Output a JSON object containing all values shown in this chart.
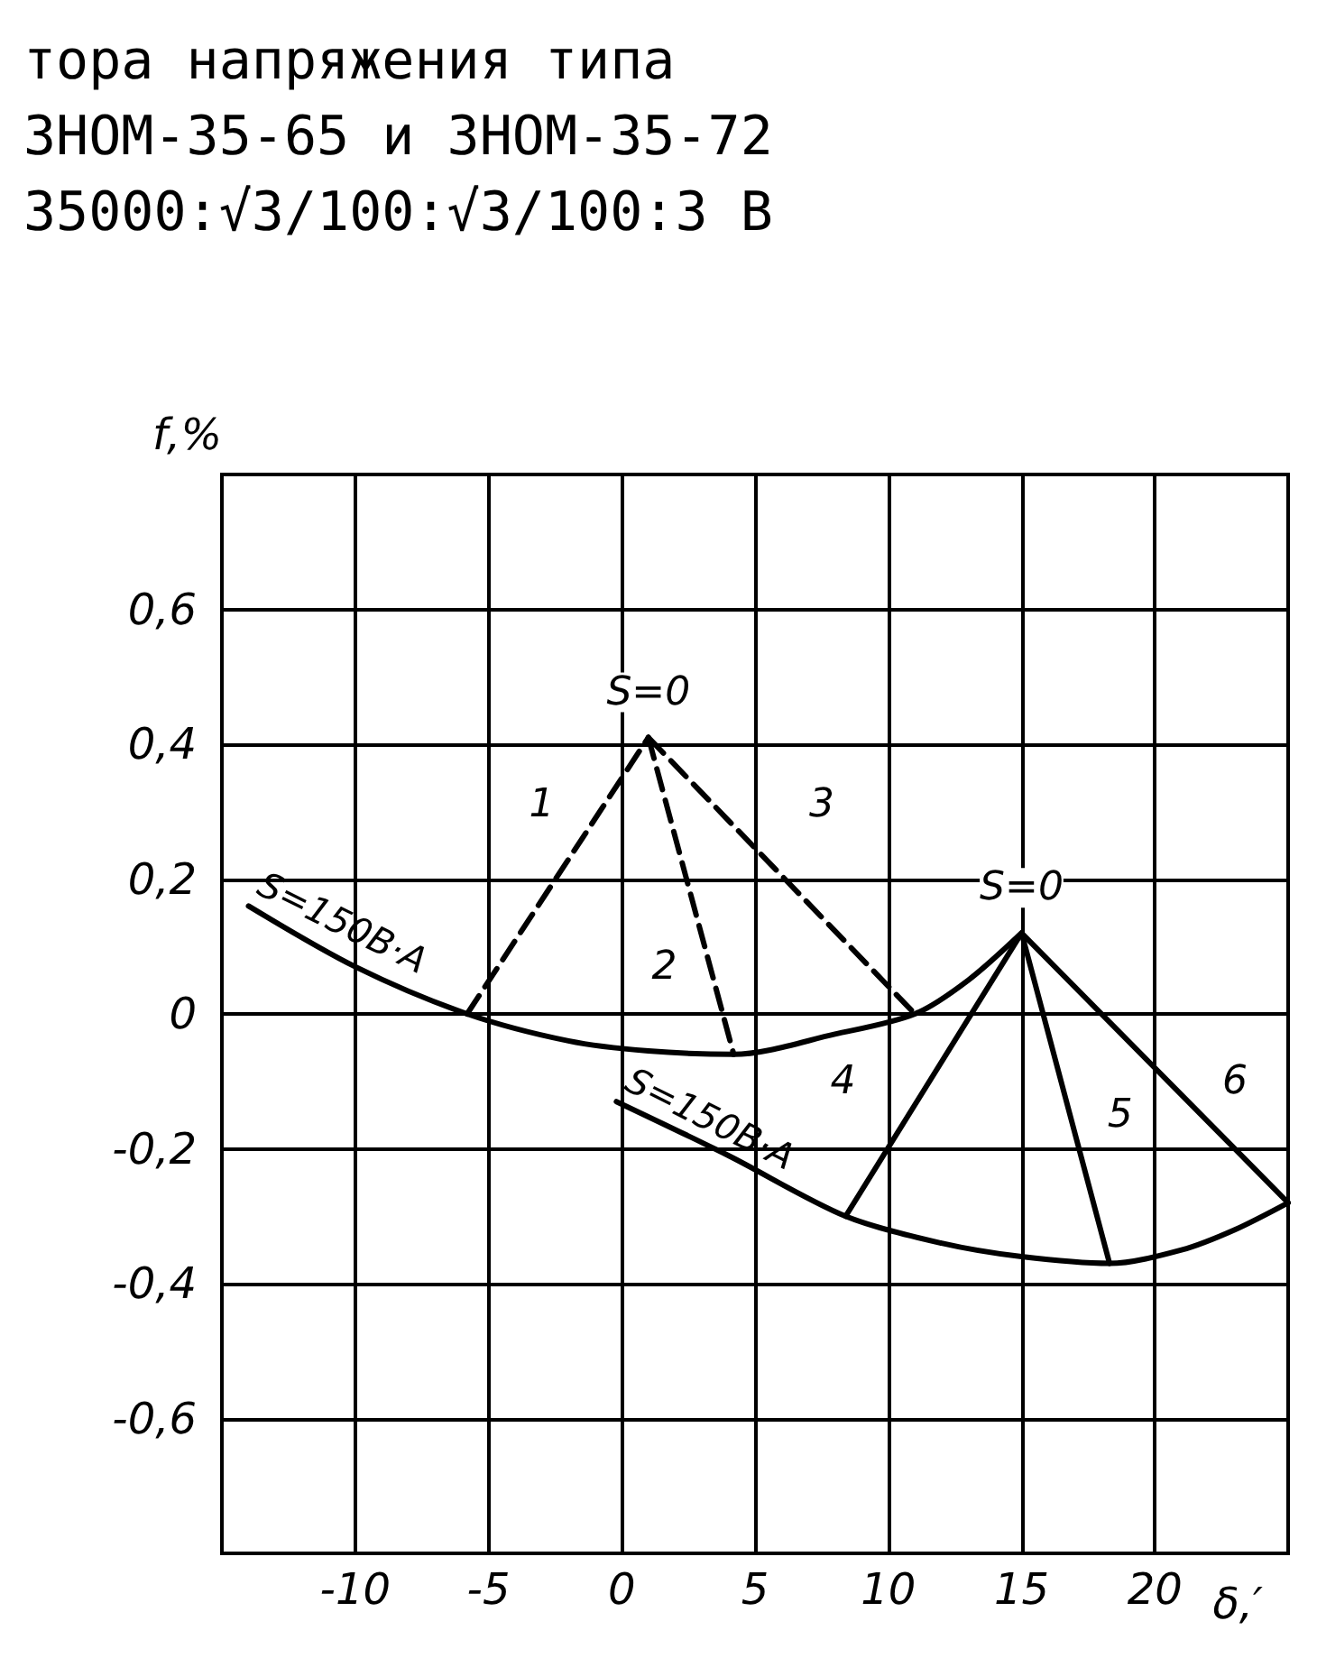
{
  "chart_data": {
    "type": "line",
    "title": "тора напряжения типа\nЗНОМ-35-65 и ЗНОМ-35-72\n35000:√3/100:√3/100:3 В",
    "xlabel": "δ,′",
    "ylabel": "f,%",
    "xlim": [
      -15,
      25
    ],
    "xticks": [
      -10,
      -5,
      0,
      5,
      10,
      15,
      20
    ],
    "ylim": [
      -0.8,
      0.8
    ],
    "yticks": [
      {
        "value": -0.6,
        "label": "-0,6"
      },
      {
        "value": -0.4,
        "label": "-0,4"
      },
      {
        "value": -0.2,
        "label": "-0,2"
      },
      {
        "value": 0,
        "label": "0"
      },
      {
        "value": 0.2,
        "label": "0,2"
      },
      {
        "value": 0.4,
        "label": "0,4"
      },
      {
        "value": 0.6,
        "label": "0,6"
      }
    ],
    "grid": true,
    "marker": "none",
    "series": [
      {
        "color": "#000000",
        "line_style": "solid",
        "x": [
          -14,
          -10,
          -5.8,
          -2,
          1,
          4.2,
          8,
          11,
          13,
          15
        ],
        "values": [
          0.16,
          0.07,
          0,
          -0.04,
          -0.055,
          -0.06,
          -0.03,
          0,
          0.05,
          0.12
        ]
      },
      {
        "color": "#000000",
        "line_style": "dashed",
        "x": [
          -5.8,
          1
        ],
        "values": [
          0,
          0.41
        ]
      },
      {
        "color": "#000000",
        "line_style": "dashed",
        "x": [
          1,
          4.2
        ],
        "values": [
          0.41,
          -0.06
        ]
      },
      {
        "color": "#000000",
        "line_style": "dashed",
        "x": [
          1,
          11
        ],
        "values": [
          0.41,
          0
        ]
      },
      {
        "color": "#000000",
        "line_style": "solid",
        "x": [
          -0.2,
          4,
          8.4,
          12,
          15,
          18.3,
          21,
          23,
          25
        ],
        "values": [
          -0.13,
          -0.21,
          -0.3,
          -0.34,
          -0.36,
          -0.37,
          -0.35,
          -0.32,
          -0.28
        ]
      },
      {
        "color": "#000000",
        "line_style": "solid",
        "x": [
          15,
          8.4
        ],
        "values": [
          0.12,
          -0.3
        ]
      },
      {
        "color": "#000000",
        "line_style": "solid",
        "x": [
          15,
          18.3
        ],
        "values": [
          0.12,
          -0.37
        ]
      },
      {
        "color": "#000000",
        "line_style": "solid",
        "x": [
          15,
          25
        ],
        "values": [
          0.12,
          -0.28
        ]
      }
    ],
    "annotations": [
      {
        "text": "S=0",
        "x": 1,
        "y": 0.41
      },
      {
        "text": "S=0",
        "x": 15,
        "y": 0.12
      },
      {
        "text": "S=150В·А",
        "x": -14,
        "y": 0.16
      },
      {
        "text": "S=150В·А",
        "x": -0.2,
        "y": -0.13
      },
      {
        "text": "1",
        "x": -3,
        "y": 0.31
      },
      {
        "text": "2",
        "x": 1.6,
        "y": 0.07
      },
      {
        "text": "3",
        "x": 7.5,
        "y": 0.31
      },
      {
        "text": "4",
        "x": 8.3,
        "y": -0.1
      },
      {
        "text": "5",
        "x": 18.7,
        "y": -0.15
      },
      {
        "text": "6",
        "x": 23,
        "y": -0.1
      }
    ]
  }
}
